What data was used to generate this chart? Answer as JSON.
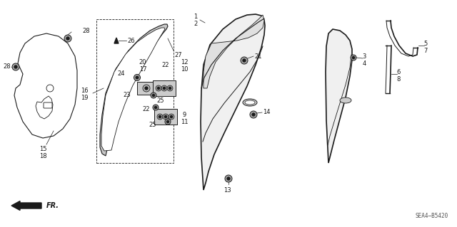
{
  "bg_color": "#ffffff",
  "diagram_code": "SEA4–B5420",
  "line_color": "#1a1a1a",
  "figsize": [
    6.4,
    3.19
  ],
  "dpi": 100
}
